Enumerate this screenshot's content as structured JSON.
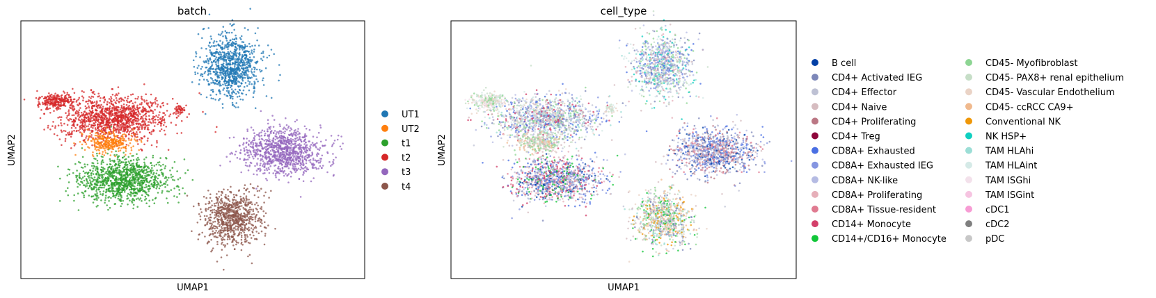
{
  "chart_data": [
    {
      "type": "scatter",
      "title": "batch",
      "xlabel": "UMAP1",
      "ylabel": "UMAP2",
      "grid": false,
      "legend_position": "right",
      "legend": [
        {
          "label": "UT1",
          "color": "#1f77b4"
        },
        {
          "label": "UT2",
          "color": "#ff7f0e"
        },
        {
          "label": "t1",
          "color": "#2ca02c"
        },
        {
          "label": "t2",
          "color": "#d62728"
        },
        {
          "label": "t3",
          "color": "#9467bd"
        },
        {
          "label": "t4",
          "color": "#8c564b"
        }
      ]
    },
    {
      "type": "scatter",
      "title": "cell_type",
      "xlabel": "UMAP1",
      "ylabel": "UMAP2",
      "grid": false,
      "legend_position": "right",
      "legend": [
        {
          "label": "B cell",
          "color": "#023fa5"
        },
        {
          "label": "CD4+ Activated IEG",
          "color": "#7d87b9"
        },
        {
          "label": "CD4+ Effector",
          "color": "#bec1d4"
        },
        {
          "label": "CD4+ Naive",
          "color": "#d6bcc0"
        },
        {
          "label": "CD4+ Proliferating",
          "color": "#bb7784"
        },
        {
          "label": "CD4+ Treg",
          "color": "#8e063b"
        },
        {
          "label": "CD8A+ Exhausted",
          "color": "#4a6fe3"
        },
        {
          "label": "CD8A+ Exhausted IEG",
          "color": "#8595e1"
        },
        {
          "label": "CD8A+ NK-like",
          "color": "#b5bbe3"
        },
        {
          "label": "CD8A+ Proliferating",
          "color": "#e6afb9"
        },
        {
          "label": "CD8A+ Tissue-resident",
          "color": "#e07b91"
        },
        {
          "label": "CD14+ Monocyte",
          "color": "#d33f6a"
        },
        {
          "label": "CD14+/CD16+ Monocyte",
          "color": "#11c638"
        },
        {
          "label": "CD45- Myofibroblast",
          "color": "#8dd593"
        },
        {
          "label": "CD45- PAX8+ renal epithelium",
          "color": "#c6dec7"
        },
        {
          "label": "CD45- Vascular Endothelium",
          "color": "#ead3c6"
        },
        {
          "label": "CD45- ccRCC CA9+",
          "color": "#f0b98d"
        },
        {
          "label": "Conventional NK",
          "color": "#ef9708"
        },
        {
          "label": "NK HSP+",
          "color": "#0fcfc0"
        },
        {
          "label": "TAM HLAhi",
          "color": "#9cded6"
        },
        {
          "label": "TAM HLAint",
          "color": "#d5eae7"
        },
        {
          "label": "TAM ISGhi",
          "color": "#f3e1eb"
        },
        {
          "label": "TAM ISGint",
          "color": "#f6c4e1"
        },
        {
          "label": "cDC1",
          "color": "#f79cd4"
        },
        {
          "label": "cDC2",
          "color": "#7f7f7f"
        },
        {
          "label": "pDC",
          "color": "#c7c7c7"
        }
      ]
    }
  ]
}
